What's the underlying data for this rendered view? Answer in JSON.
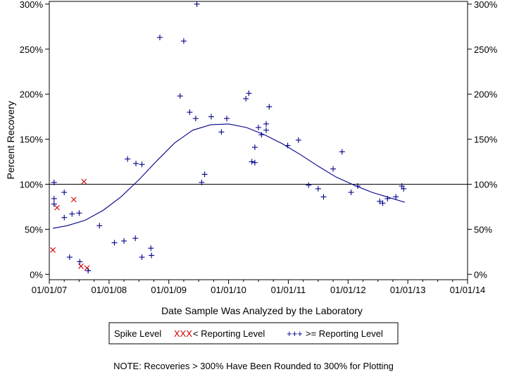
{
  "chart_data": {
    "type": "scatter",
    "xlabel": "Date Sample Was Analyzed by the Laboratory",
    "ylabel": "Percent Recovery",
    "x_ticks": [
      "01/01/07",
      "01/01/08",
      "01/01/09",
      "01/01/10",
      "01/01/11",
      "01/01/12",
      "01/01/13",
      "01/01/14"
    ],
    "x_range": [
      2007.0,
      2014.0
    ],
    "y_ticks": [
      "0%",
      "50%",
      "100%",
      "150%",
      "200%",
      "250%",
      "300%"
    ],
    "y_tick_values": [
      0,
      50,
      100,
      150,
      200,
      250,
      300
    ],
    "ylim": [
      -6,
      303
    ],
    "reference_line": 100,
    "grid": false,
    "legend": {
      "title": "Spike Level",
      "entries": [
        {
          "marker": "x",
          "marker_text": "XXX",
          "label": "< Reporting Level",
          "color": "#cc0000"
        },
        {
          "marker": "+",
          "marker_text": "+++",
          "label": ">= Reporting Level",
          "color": "#00008b"
        }
      ]
    },
    "note": "NOTE: Recoveries > 300% Have Been Rounded to 300% for Plotting",
    "series": [
      {
        "marker": "x",
        "color": "#cc0000",
        "points": [
          {
            "x": 2007.06,
            "y": 27
          },
          {
            "x": 2007.13,
            "y": 74
          },
          {
            "x": 2007.41,
            "y": 83
          },
          {
            "x": 2007.53,
            "y": 9
          },
          {
            "x": 2007.58,
            "y": 103
          },
          {
            "x": 2007.63,
            "y": 7
          }
        ]
      },
      {
        "marker": "+",
        "color": "#00008b",
        "points": [
          {
            "x": 2007.08,
            "y": 102
          },
          {
            "x": 2007.08,
            "y": 84
          },
          {
            "x": 2007.08,
            "y": 78
          },
          {
            "x": 2007.25,
            "y": 91
          },
          {
            "x": 2007.25,
            "y": 63
          },
          {
            "x": 2007.34,
            "y": 19
          },
          {
            "x": 2007.38,
            "y": 67
          },
          {
            "x": 2007.5,
            "y": 68
          },
          {
            "x": 2007.51,
            "y": 14
          },
          {
            "x": 2007.65,
            "y": 4
          },
          {
            "x": 2007.84,
            "y": 54
          },
          {
            "x": 2008.09,
            "y": 35
          },
          {
            "x": 2008.25,
            "y": 37
          },
          {
            "x": 2008.31,
            "y": 128
          },
          {
            "x": 2008.44,
            "y": 40
          },
          {
            "x": 2008.45,
            "y": 123
          },
          {
            "x": 2008.55,
            "y": 122
          },
          {
            "x": 2008.55,
            "y": 19
          },
          {
            "x": 2008.7,
            "y": 29
          },
          {
            "x": 2008.71,
            "y": 21
          },
          {
            "x": 2008.85,
            "y": 263
          },
          {
            "x": 2009.19,
            "y": 198
          },
          {
            "x": 2009.25,
            "y": 259
          },
          {
            "x": 2009.35,
            "y": 180
          },
          {
            "x": 2009.45,
            "y": 173
          },
          {
            "x": 2009.47,
            "y": 300
          },
          {
            "x": 2009.55,
            "y": 102
          },
          {
            "x": 2009.6,
            "y": 111
          },
          {
            "x": 2009.71,
            "y": 175
          },
          {
            "x": 2009.88,
            "y": 158
          },
          {
            "x": 2009.97,
            "y": 173
          },
          {
            "x": 2010.29,
            "y": 195
          },
          {
            "x": 2010.34,
            "y": 201
          },
          {
            "x": 2010.39,
            "y": 125
          },
          {
            "x": 2010.44,
            "y": 124
          },
          {
            "x": 2010.44,
            "y": 141
          },
          {
            "x": 2010.5,
            "y": 163
          },
          {
            "x": 2010.55,
            "y": 155
          },
          {
            "x": 2010.63,
            "y": 160
          },
          {
            "x": 2010.63,
            "y": 167
          },
          {
            "x": 2010.68,
            "y": 186
          },
          {
            "x": 2010.99,
            "y": 143
          },
          {
            "x": 2011.17,
            "y": 149
          },
          {
            "x": 2011.34,
            "y": 99
          },
          {
            "x": 2011.5,
            "y": 95
          },
          {
            "x": 2011.59,
            "y": 86
          },
          {
            "x": 2011.75,
            "y": 117
          },
          {
            "x": 2011.9,
            "y": 136
          },
          {
            "x": 2012.05,
            "y": 91
          },
          {
            "x": 2012.16,
            "y": 98
          },
          {
            "x": 2012.53,
            "y": 81
          },
          {
            "x": 2012.58,
            "y": 79
          },
          {
            "x": 2012.66,
            "y": 84
          },
          {
            "x": 2012.8,
            "y": 86
          },
          {
            "x": 2012.9,
            "y": 98
          },
          {
            "x": 2012.93,
            "y": 95
          }
        ]
      }
    ],
    "trend_line": {
      "color": "#00008b",
      "points": [
        {
          "x": 2007.06,
          "y": 51
        },
        {
          "x": 2007.3,
          "y": 54
        },
        {
          "x": 2007.6,
          "y": 60
        },
        {
          "x": 2007.9,
          "y": 71
        },
        {
          "x": 2008.2,
          "y": 86
        },
        {
          "x": 2008.5,
          "y": 105
        },
        {
          "x": 2008.8,
          "y": 126
        },
        {
          "x": 2009.1,
          "y": 146
        },
        {
          "x": 2009.4,
          "y": 160
        },
        {
          "x": 2009.7,
          "y": 166
        },
        {
          "x": 2010.0,
          "y": 167
        },
        {
          "x": 2010.3,
          "y": 163
        },
        {
          "x": 2010.6,
          "y": 155
        },
        {
          "x": 2010.9,
          "y": 145
        },
        {
          "x": 2011.2,
          "y": 133
        },
        {
          "x": 2011.5,
          "y": 120
        },
        {
          "x": 2011.8,
          "y": 108
        },
        {
          "x": 2012.1,
          "y": 99
        },
        {
          "x": 2012.4,
          "y": 91
        },
        {
          "x": 2012.7,
          "y": 85
        },
        {
          "x": 2012.95,
          "y": 80
        }
      ]
    }
  }
}
